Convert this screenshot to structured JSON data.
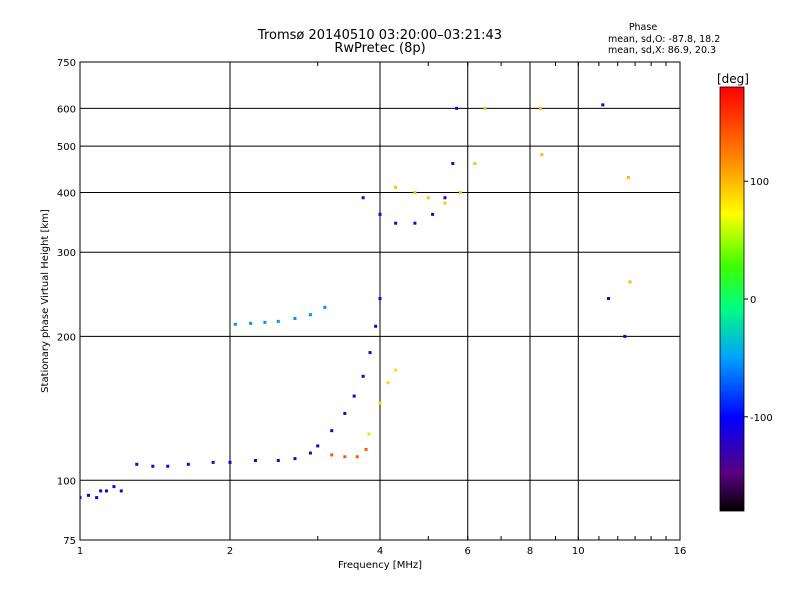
{
  "chart_data": {
    "type": "scatter",
    "title": "Tromsø 20140510 03:20:00–03:21:43",
    "subtitle": "RwPretec (8p)",
    "xlabel": "Frequency [MHz]",
    "ylabel": "Stationary phase Virtual Height [km]",
    "x_scale": "log",
    "y_scale": "log",
    "xlim": [
      1,
      16
    ],
    "ylim": [
      75,
      750
    ],
    "x_ticks": [
      1,
      2,
      4,
      6,
      8,
      10,
      16
    ],
    "y_ticks": [
      75,
      100,
      200,
      300,
      400,
      500,
      600,
      750
    ],
    "grid": true,
    "stats": {
      "title": "Phase",
      "line_o": "mean, sd,O:  -87.8, 18.2",
      "line_x": "mean, sd,X:  86.9, 20.3"
    },
    "colorbar": {
      "label": "[deg]",
      "range": [
        -180,
        180
      ],
      "ticks": [
        100,
        0,
        -100
      ],
      "tick_labels": [
        "100",
        "0",
        "-100"
      ]
    },
    "series": [
      {
        "x": [
          1.0,
          1.04,
          1.08,
          1.1,
          1.13,
          1.17,
          1.21
        ],
        "y": [
          92,
          93,
          92,
          95,
          95,
          97,
          95
        ],
        "phase": -110
      },
      {
        "x": [
          1.3,
          1.4,
          1.5,
          1.65,
          1.85,
          2.0,
          2.25,
          2.5,
          2.7,
          2.9
        ],
        "y": [
          108,
          107,
          107,
          108,
          109,
          109,
          110,
          110,
          111,
          114
        ],
        "phase": -118
      },
      {
        "x": [
          3.0,
          3.2,
          3.4,
          3.55,
          3.7,
          3.82,
          3.92,
          4.0
        ],
        "y": [
          118,
          127,
          138,
          150,
          165,
          185,
          210,
          240
        ],
        "phase": -115
      },
      {
        "x": [
          2.05,
          2.2,
          2.35,
          2.5,
          2.7,
          2.9,
          3.1
        ],
        "y": [
          212,
          213,
          214,
          215,
          218,
          222,
          230
        ],
        "phase": -55
      },
      {
        "x": [
          3.2,
          3.4,
          3.6,
          3.75
        ],
        "y": [
          113,
          112,
          112,
          116
        ],
        "phase": 140
      },
      {
        "x": [
          3.8,
          4.0,
          4.15,
          4.3
        ],
        "y": [
          125,
          145,
          160,
          170
        ],
        "phase": 85
      },
      {
        "x": [
          3.7,
          4.0,
          4.3,
          4.7,
          5.1,
          5.4,
          5.6,
          5.7
        ],
        "y": [
          390,
          360,
          345,
          345,
          360,
          390,
          460,
          600
        ],
        "phase": -118
      },
      {
        "x": [
          4.3,
          4.7,
          5.0,
          5.4,
          5.8,
          6.2,
          6.5
        ],
        "y": [
          410,
          400,
          390,
          380,
          400,
          460,
          600
        ],
        "phase": 95
      },
      {
        "x": [
          8.4,
          8.45,
          12.6,
          12.7
        ],
        "y": [
          600,
          480,
          430,
          260
        ],
        "phase": 100
      },
      {
        "x": [
          11.2,
          11.5,
          12.4
        ],
        "y": [
          610,
          240,
          200
        ],
        "phase": -110
      }
    ]
  }
}
